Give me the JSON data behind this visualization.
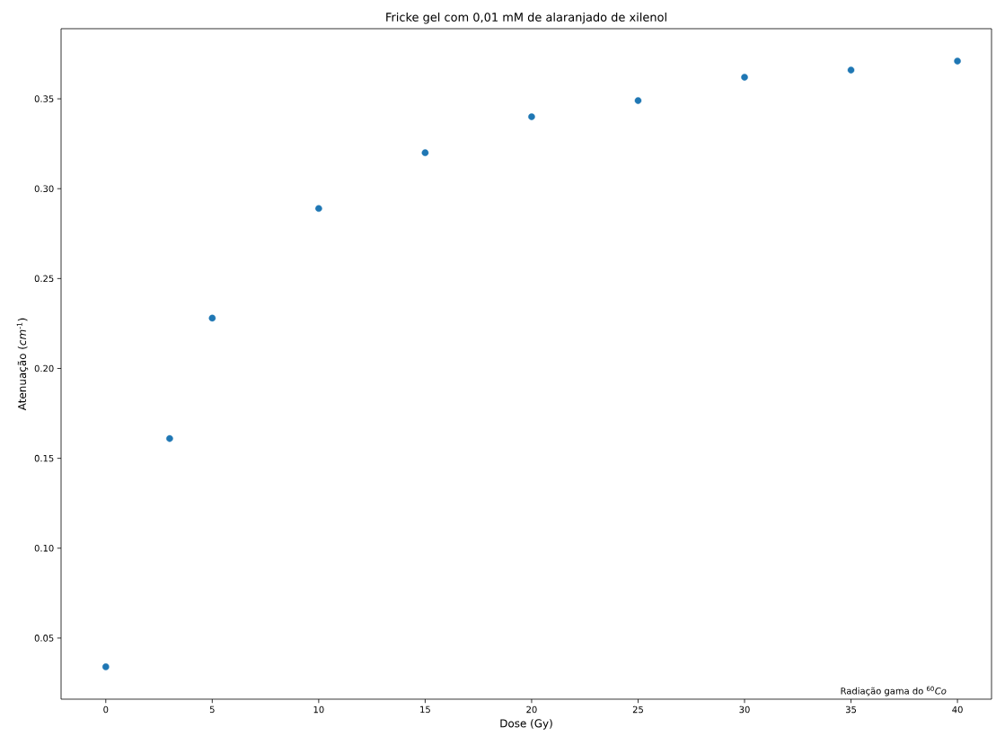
{
  "chart_data": {
    "type": "scatter",
    "title": "Fricke gel com 0,01 mM de alaranjado de xilenol",
    "xlabel": "Dose (Gy)",
    "ylabel": "Atenuação (*cm*$^{-1}$)",
    "annotations": [
      "Radiação gama do $^{60}$*Co*"
    ],
    "x": [
      0,
      3,
      5,
      10,
      15,
      20,
      25,
      30,
      35,
      40
    ],
    "values": [
      0.034,
      0.161,
      0.228,
      0.289,
      0.32,
      0.34,
      0.349,
      0.362,
      0.366,
      0.371
    ],
    "color": "#1f77b4",
    "marker": "circle",
    "xlim": [
      -2.1,
      41.6
    ],
    "ylim": [
      0.016,
      0.389
    ],
    "xticks": [
      0,
      5,
      10,
      15,
      20,
      25,
      30,
      35,
      40
    ],
    "yticks": [
      {
        "value": 0.05,
        "label": "0.05"
      },
      {
        "value": 0.1,
        "label": "0.10"
      },
      {
        "value": 0.15,
        "label": "0.15"
      },
      {
        "value": 0.2,
        "label": "0.20"
      },
      {
        "value": 0.25,
        "label": "0.25"
      },
      {
        "value": 0.3,
        "label": "0.30"
      },
      {
        "value": 0.35,
        "label": "0.35"
      }
    ],
    "grid": false
  }
}
